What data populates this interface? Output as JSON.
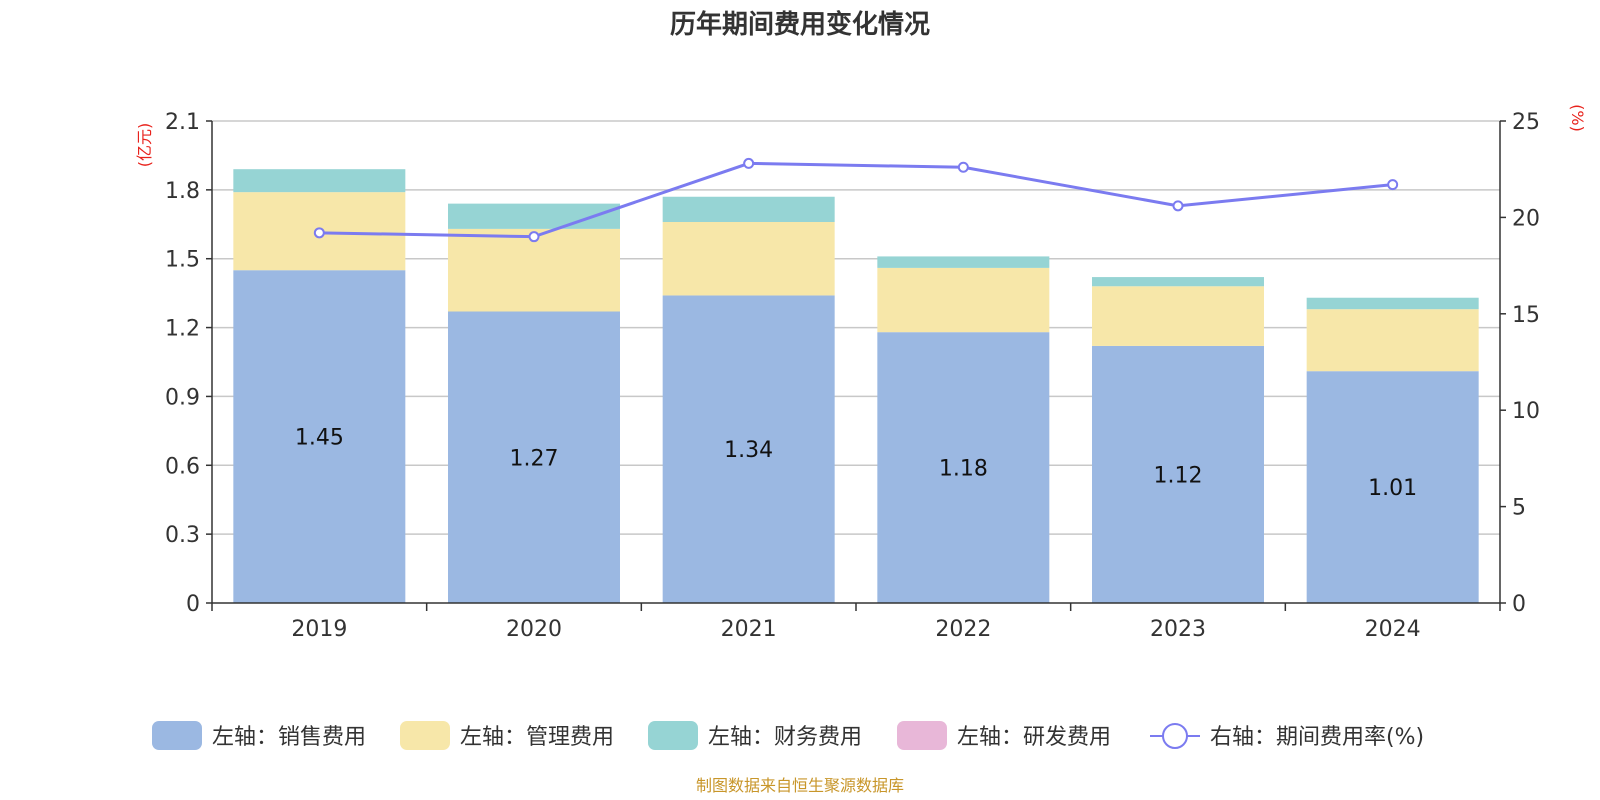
{
  "title": "历年期间费用变化情况",
  "source_note": "制图数据来自恒生聚源数据库",
  "colors": {
    "sales": "#9bb8e2",
    "admin": "#f7e7a9",
    "finance": "#96d4d4",
    "rnd": "#e8b7d8",
    "rate_line": "#7b7bf0",
    "unit_text": "#e8221c",
    "source_text": "#c8962a"
  },
  "chart_data": {
    "type": "bar",
    "stacked": true,
    "categories": [
      "2019",
      "2020",
      "2021",
      "2022",
      "2023",
      "2024"
    ],
    "left_axis": {
      "unit_label": "(亿元)",
      "ylim": [
        0,
        2.1
      ],
      "ticks": [
        "0",
        "0.3",
        "0.6",
        "0.9",
        "1.2",
        "1.5",
        "1.8",
        "2.1"
      ]
    },
    "right_axis": {
      "unit_label": "(%)",
      "ylim": [
        0,
        25
      ],
      "ticks": [
        "0",
        "5",
        "10",
        "15",
        "20",
        "25"
      ]
    },
    "series": [
      {
        "name": "左轴：销售费用",
        "key": "sales",
        "axis": "left",
        "type": "bar",
        "values": [
          1.45,
          1.27,
          1.34,
          1.18,
          1.12,
          1.01
        ],
        "labels": [
          "1.45",
          "1.27",
          "1.34",
          "1.18",
          "1.12",
          "1.01"
        ]
      },
      {
        "name": "左轴：管理费用",
        "key": "admin",
        "axis": "left",
        "type": "bar",
        "values": [
          0.34,
          0.36,
          0.32,
          0.28,
          0.26,
          0.27
        ]
      },
      {
        "name": "左轴：财务费用",
        "key": "finance",
        "axis": "left",
        "type": "bar",
        "values": [
          0.1,
          0.11,
          0.11,
          0.05,
          0.04,
          0.05
        ]
      },
      {
        "name": "左轴：研发费用",
        "key": "rnd",
        "axis": "left",
        "type": "bar",
        "values": [
          0,
          0,
          0,
          0,
          0,
          0
        ]
      },
      {
        "name": "右轴：期间费用率(%)",
        "key": "rate_line",
        "axis": "right",
        "type": "line",
        "values": [
          19.2,
          19.0,
          22.8,
          22.6,
          20.6,
          21.7
        ]
      }
    ],
    "grid": true,
    "legend_position": "bottom"
  }
}
